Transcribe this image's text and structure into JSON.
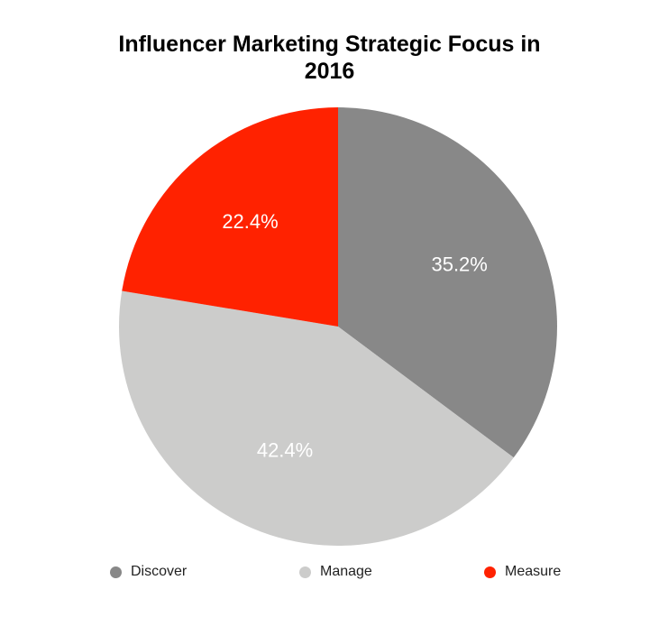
{
  "chart_data": {
    "type": "pie",
    "title_lines": [
      "Influencer Marketing Strategic Focus in",
      "2016"
    ],
    "slices": [
      {
        "name": "Discover",
        "value": 35.2,
        "label": "35.2%",
        "color": "#888888"
      },
      {
        "name": "Manage",
        "value": 42.4,
        "label": "42.4%",
        "color": "#cccccb"
      },
      {
        "name": "Measure",
        "value": 22.4,
        "label": "22.4%",
        "color": "#ff2200"
      }
    ],
    "start_angle": "12 o'clock",
    "direction": "clockwise",
    "legend_position": "bottom",
    "slice_labels_color": "#ffffff"
  }
}
